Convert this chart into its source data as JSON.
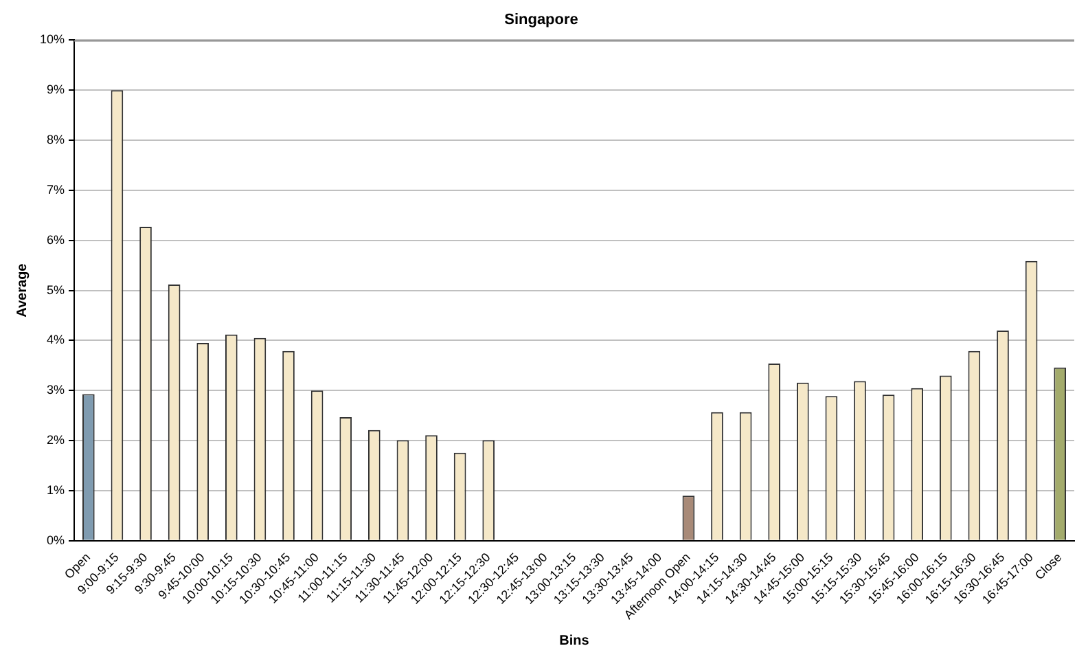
{
  "chart_data": {
    "type": "bar",
    "title": "Singapore",
    "xlabel": "Bins",
    "ylabel": "Average",
    "categories": [
      "Open",
      "9:00-9:15",
      "9:15-9:30",
      "9:30-9:45",
      "9:45-10:00",
      "10:00-10:15",
      "10:15-10:30",
      "10:30-10:45",
      "10:45-11:00",
      "11:00-11:15",
      "11:15-11:30",
      "11:30-11:45",
      "11:45-12:00",
      "12:00-12:15",
      "12:15-12:30",
      "12:30-12:45",
      "12:45-13:00",
      "13:00-13:15",
      "13:15-13:30",
      "13:30-13:45",
      "13:45-14:00",
      "Afternoon Open",
      "14:00-14:15",
      "14:15-14:30",
      "14:30-14:45",
      "14:45-15:00",
      "15:00-15:15",
      "15:15-15:30",
      "15:30-15:45",
      "15:45-16:00",
      "16:00-16:15",
      "16:15-16:30",
      "16:30-16:45",
      "16:45-17:00",
      "Close"
    ],
    "values": [
      2.93,
      9.0,
      6.27,
      5.12,
      3.95,
      4.12,
      4.05,
      3.79,
      3.0,
      2.47,
      2.21,
      2.01,
      2.11,
      1.76,
      2.01,
      null,
      null,
      null,
      null,
      null,
      null,
      0.9,
      2.57,
      2.57,
      3.54,
      3.16,
      2.89,
      3.19,
      2.92,
      3.05,
      3.3,
      3.79,
      4.2,
      5.59,
      3.46
    ],
    "colors": [
      "#7f9bb0",
      "#f5e8c8",
      "#f5e8c8",
      "#f5e8c8",
      "#f5e8c8",
      "#f5e8c8",
      "#f5e8c8",
      "#f5e8c8",
      "#f5e8c8",
      "#f5e8c8",
      "#f5e8c8",
      "#f5e8c8",
      "#f5e8c8",
      "#f5e8c8",
      "#f5e8c8",
      "#f5e8c8",
      "#f5e8c8",
      "#f5e8c8",
      "#f5e8c8",
      "#f5e8c8",
      "#f5e8c8",
      "#a88a78",
      "#f5e8c8",
      "#f5e8c8",
      "#f5e8c8",
      "#f5e8c8",
      "#f5e8c8",
      "#f5e8c8",
      "#f5e8c8",
      "#f5e8c8",
      "#f5e8c8",
      "#f5e8c8",
      "#f5e8c8",
      "#f5e8c8",
      "#a3ab6c"
    ],
    "ylim": [
      0,
      10
    ],
    "yticks": [
      {
        "value": 0,
        "label": "0%"
      },
      {
        "value": 1,
        "label": "1%"
      },
      {
        "value": 2,
        "label": "2%"
      },
      {
        "value": 3,
        "label": "3%"
      },
      {
        "value": 4,
        "label": "4%"
      },
      {
        "value": 5,
        "label": "5%"
      },
      {
        "value": 6,
        "label": "6%"
      },
      {
        "value": 7,
        "label": "7%"
      },
      {
        "value": 8,
        "label": "8%"
      },
      {
        "value": 9,
        "label": "9%"
      },
      {
        "value": 10,
        "label": "10%"
      }
    ],
    "grid": "y",
    "legend": false
  }
}
